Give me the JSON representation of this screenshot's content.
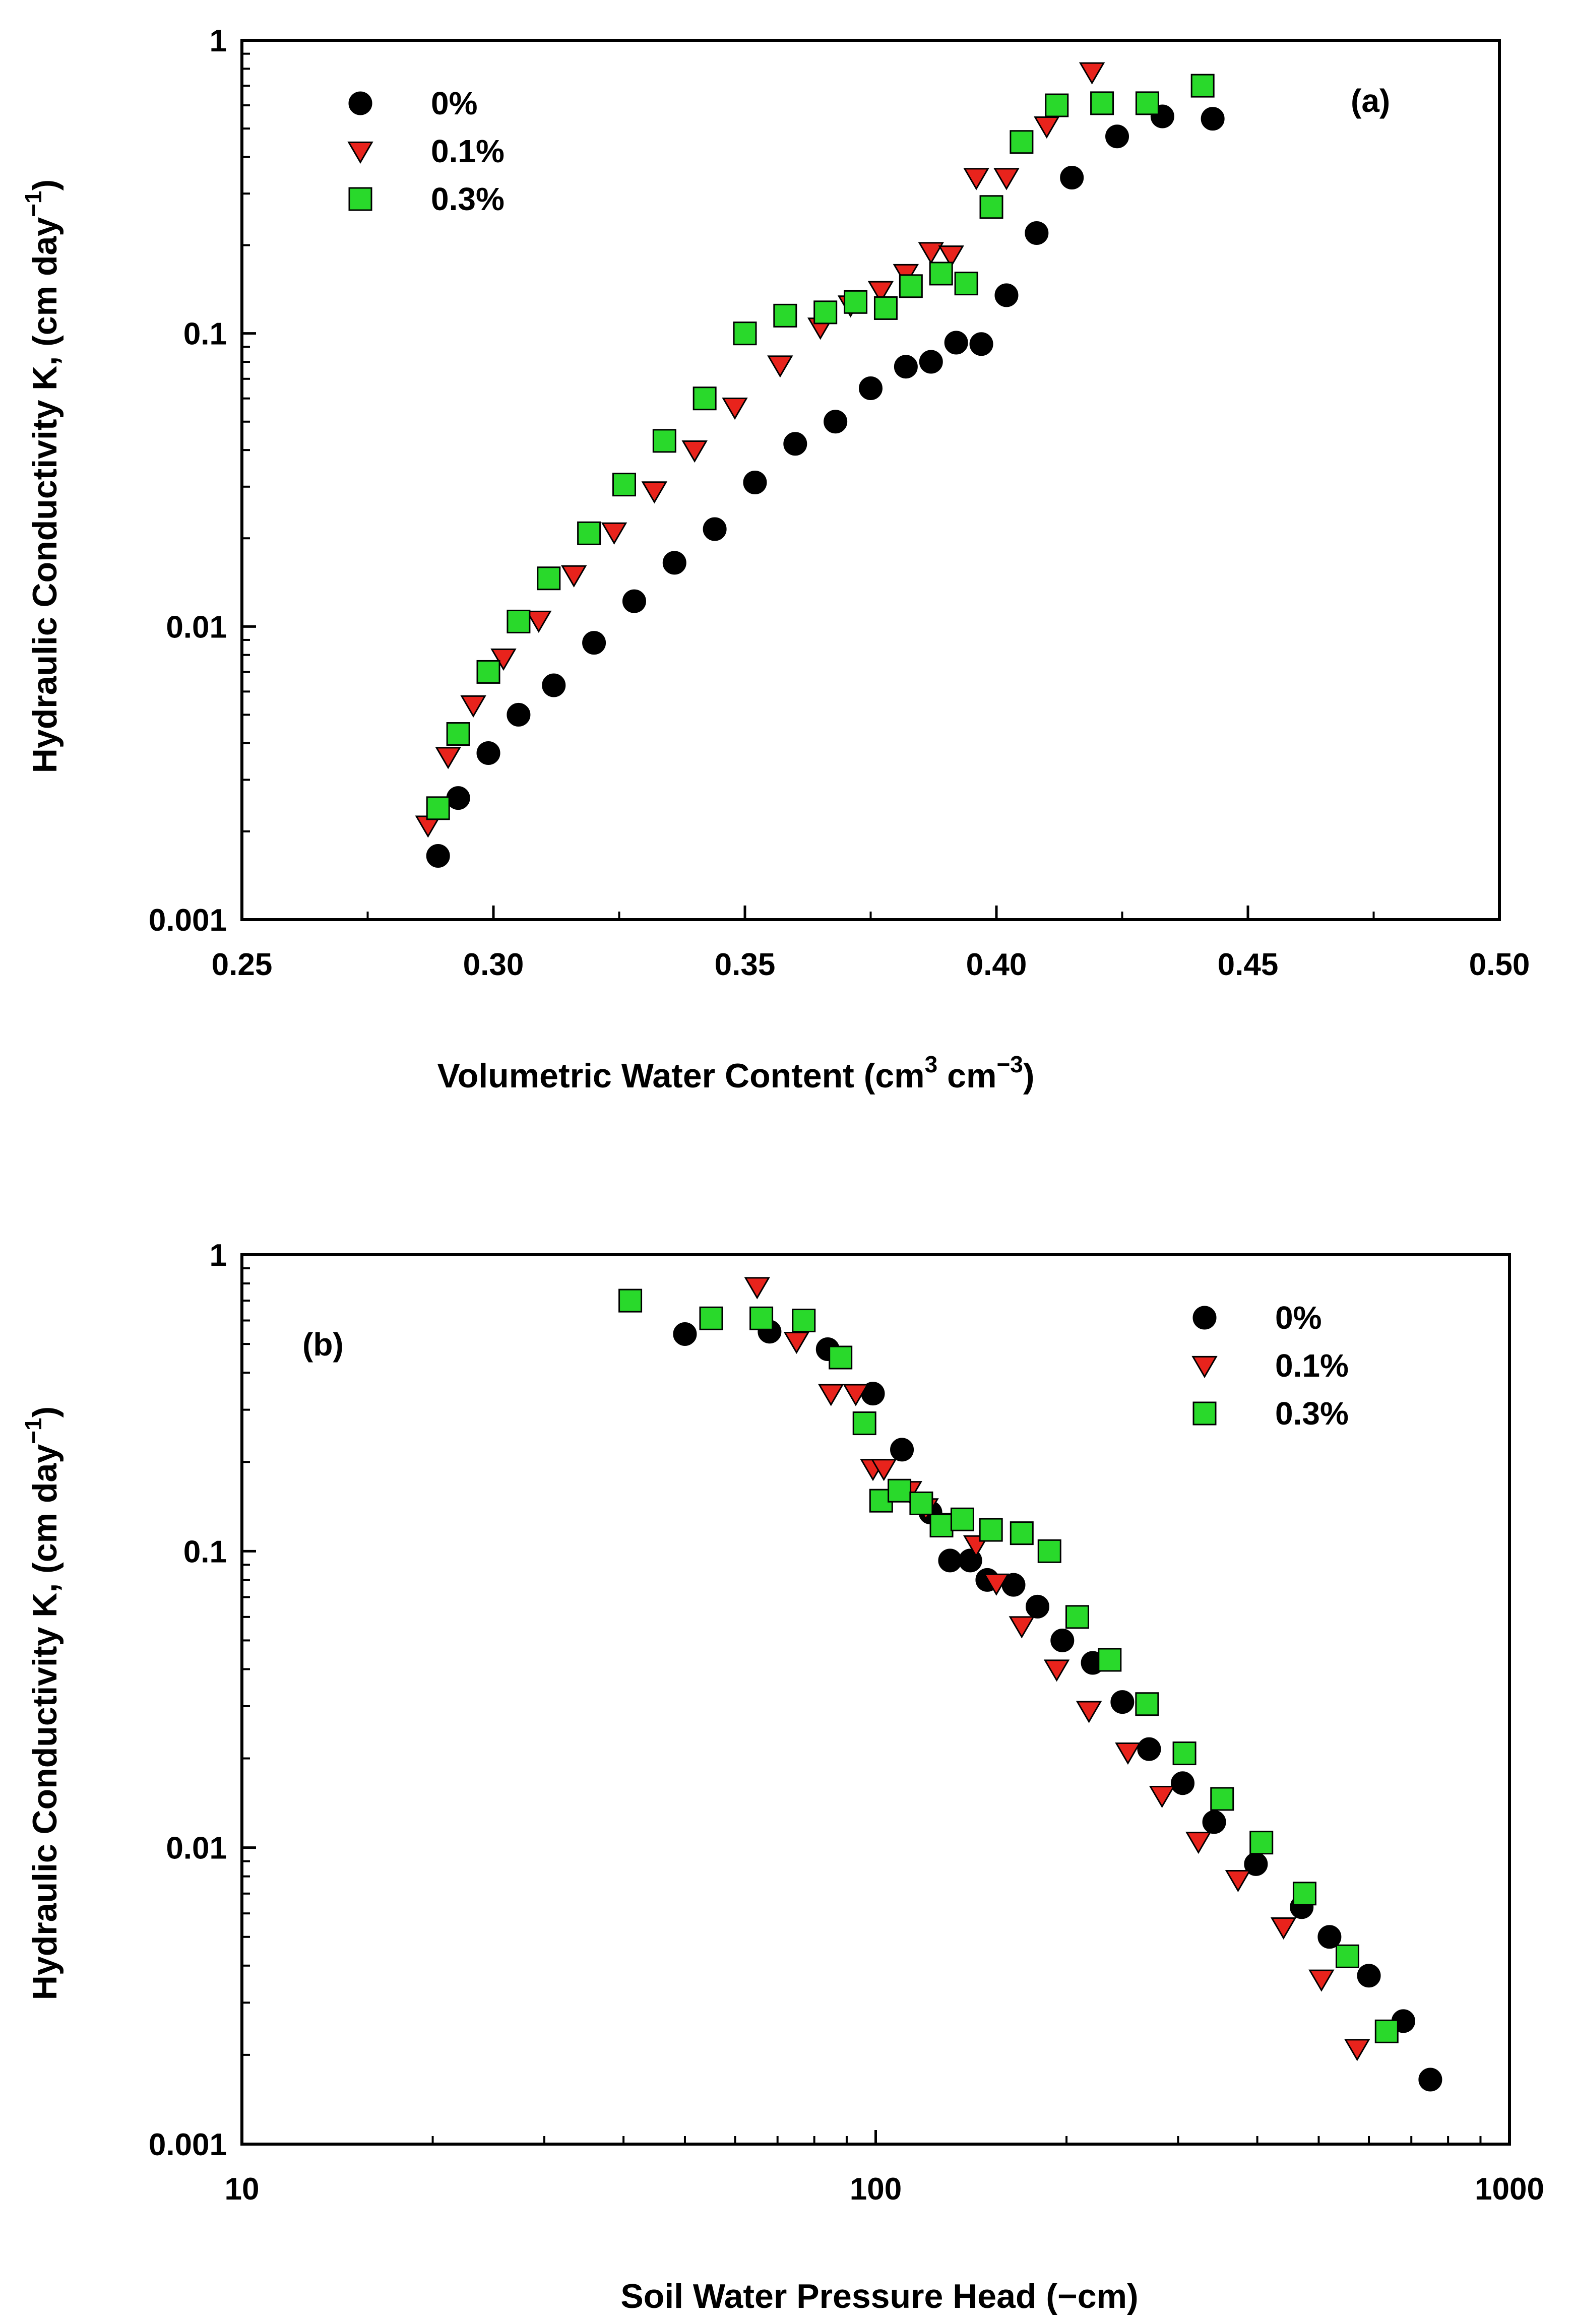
{
  "chart_data": [
    {
      "id": "a",
      "type": "scatter",
      "panel_label": "(a)",
      "xlabel": "Volumetric Water Content (cm3 cm−3)",
      "xlabel_parts": [
        "Volumetric Water Content (cm",
        "3",
        " cm",
        "−3",
        ")"
      ],
      "ylabel": "Hydraulic Conductivity K, (cm day−1)",
      "ylabel_parts": [
        "Hydraulic Conductivity K, (cm day",
        "−1",
        ")"
      ],
      "xscale": "linear",
      "yscale": "log",
      "xlim": [
        0.25,
        0.5
      ],
      "ylim": [
        0.001,
        1
      ],
      "xticks": [
        0.25,
        0.3,
        0.35,
        0.4,
        0.45,
        0.5
      ],
      "xtick_labels": [
        "0.25",
        "0.30",
        "0.35",
        "0.40",
        "0.45",
        "0.50"
      ],
      "yticks": [
        0.001,
        0.01,
        0.1,
        1
      ],
      "ytick_labels": [
        "0.001",
        "0.01",
        "0.1",
        "1"
      ],
      "legend_position": "top-left",
      "series": [
        {
          "name": "0%",
          "marker": "circle",
          "color": "#000000",
          "x": [
            0.289,
            0.293,
            0.299,
            0.305,
            0.312,
            0.32,
            0.328,
            0.336,
            0.344,
            0.352,
            0.36,
            0.368,
            0.375,
            0.382,
            0.387,
            0.392,
            0.397,
            0.402,
            0.408,
            0.415,
            0.424,
            0.433,
            0.443
          ],
          "y": [
            0.00165,
            0.0026,
            0.0037,
            0.005,
            0.0063,
            0.0088,
            0.0122,
            0.0165,
            0.0215,
            0.031,
            0.042,
            0.05,
            0.065,
            0.077,
            0.08,
            0.093,
            0.092,
            0.135,
            0.22,
            0.34,
            0.47,
            0.55,
            0.54
          ]
        },
        {
          "name": "0.1%",
          "marker": "triangle-down",
          "color": "#e8231c",
          "x": [
            0.287,
            0.291,
            0.296,
            0.302,
            0.309,
            0.316,
            0.324,
            0.332,
            0.34,
            0.348,
            0.357,
            0.365,
            0.371,
            0.377,
            0.382,
            0.387,
            0.391,
            0.396,
            0.402,
            0.41,
            0.419
          ],
          "y": [
            0.0021,
            0.0036,
            0.0054,
            0.0078,
            0.0105,
            0.015,
            0.021,
            0.029,
            0.04,
            0.056,
            0.078,
            0.105,
            0.125,
            0.14,
            0.16,
            0.19,
            0.185,
            0.34,
            0.34,
            0.51,
            0.78
          ]
        },
        {
          "name": "0.3%",
          "marker": "square",
          "color": "#29d92b",
          "x": [
            0.289,
            0.293,
            0.299,
            0.305,
            0.311,
            0.319,
            0.326,
            0.334,
            0.342,
            0.35,
            0.358,
            0.366,
            0.372,
            0.378,
            0.383,
            0.389,
            0.394,
            0.399,
            0.405,
            0.412,
            0.421,
            0.43,
            0.441
          ],
          "y": [
            0.0024,
            0.0043,
            0.007,
            0.0104,
            0.0146,
            0.0208,
            0.0305,
            0.043,
            0.06,
            0.1,
            0.115,
            0.118,
            0.128,
            0.122,
            0.145,
            0.16,
            0.148,
            0.27,
            0.45,
            0.6,
            0.61,
            0.61,
            0.7
          ]
        }
      ]
    },
    {
      "id": "b",
      "type": "scatter",
      "panel_label": "(b)",
      "xlabel": "Soil Water Pressure Head (−cm)",
      "ylabel": "Hydraulic Conductivity K, (cm day−1)",
      "ylabel_parts": [
        "Hydraulic Conductivity K, (cm day",
        "−1",
        ")"
      ],
      "xscale": "log",
      "yscale": "log",
      "xlim": [
        10,
        1000
      ],
      "ylim": [
        0.001,
        1
      ],
      "xticks": [
        10,
        100,
        1000
      ],
      "xtick_labels": [
        "10",
        "100",
        "1000"
      ],
      "yticks": [
        0.001,
        0.01,
        0.1,
        1
      ],
      "ytick_labels": [
        "0.001",
        "0.01",
        "0.1",
        "1"
      ],
      "legend_position": "top-right",
      "series": [
        {
          "name": "0%",
          "marker": "circle",
          "color": "#000000",
          "x": [
            50,
            68,
            84,
            99,
            110,
            122,
            131,
            141,
            150,
            165,
            180,
            197,
            220,
            245,
            270,
            305,
            342,
            398,
            470,
            520,
            600,
            680,
            750
          ],
          "y": [
            0.54,
            0.55,
            0.48,
            0.34,
            0.22,
            0.135,
            0.093,
            0.093,
            0.08,
            0.077,
            0.065,
            0.05,
            0.042,
            0.031,
            0.0215,
            0.0165,
            0.0122,
            0.0088,
            0.0063,
            0.005,
            0.0037,
            0.0026,
            0.00165
          ]
        },
        {
          "name": "0.1%",
          "marker": "triangle-down",
          "color": "#e8231c",
          "x": [
            65,
            75,
            85,
            93,
            99,
            103,
            113,
            120,
            129,
            144,
            155,
            170,
            193,
            217,
            250,
            283,
            323,
            373,
            440,
            505,
            575
          ],
          "y": [
            0.78,
            0.51,
            0.34,
            0.34,
            0.19,
            0.19,
            0.16,
            0.14,
            0.125,
            0.105,
            0.078,
            0.056,
            0.04,
            0.029,
            0.021,
            0.015,
            0.0105,
            0.0078,
            0.0054,
            0.0036,
            0.0021
          ]
        },
        {
          "name": "0.3%",
          "marker": "square",
          "color": "#29d92b",
          "x": [
            41,
            55,
            66,
            77,
            88,
            96,
            102,
            109,
            118,
            127,
            137,
            152,
            170,
            188,
            208,
            234,
            268,
            307,
            352,
            406,
            475,
            555,
            640
          ],
          "y": [
            0.7,
            0.61,
            0.61,
            0.6,
            0.45,
            0.27,
            0.148,
            0.16,
            0.145,
            0.122,
            0.128,
            0.118,
            0.115,
            0.1,
            0.06,
            0.043,
            0.0305,
            0.0208,
            0.0146,
            0.0104,
            0.007,
            0.0043,
            0.0024
          ]
        }
      ]
    }
  ]
}
